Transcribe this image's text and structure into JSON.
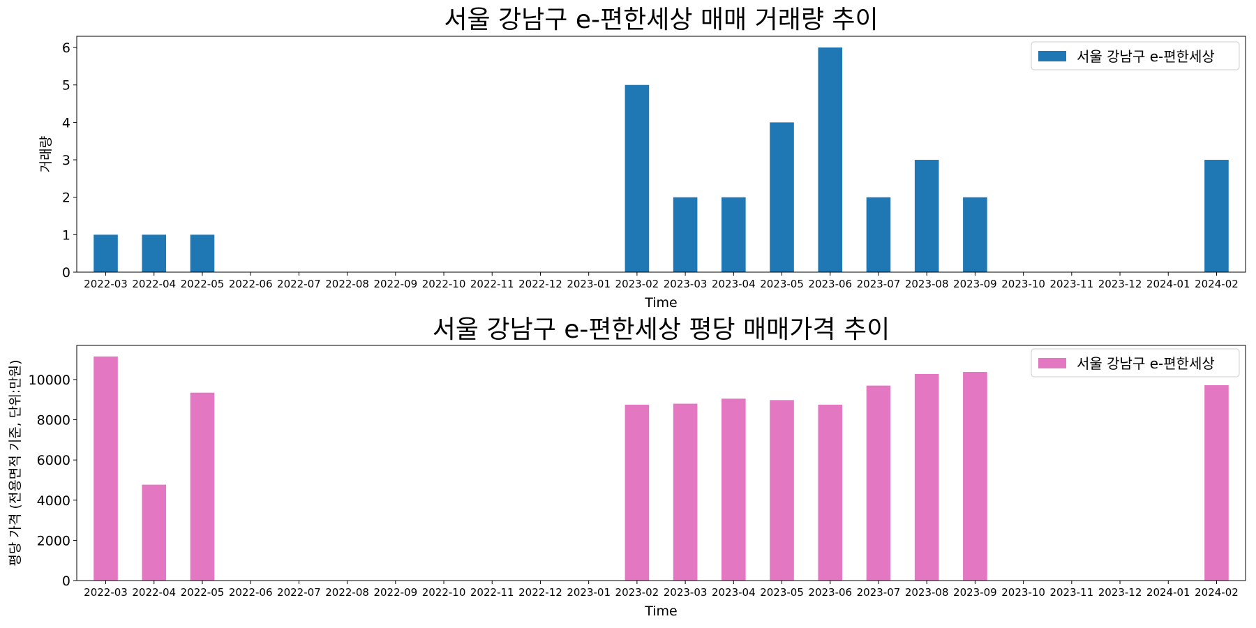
{
  "chart_data": [
    {
      "type": "bar",
      "title": "서울 강남구 e-편한세상 매매 거래량 추이",
      "xlabel": "Time",
      "ylabel": "거래량",
      "categories": [
        "2022-03",
        "2022-04",
        "2022-05",
        "2022-06",
        "2022-07",
        "2022-08",
        "2022-09",
        "2022-10",
        "2022-11",
        "2022-12",
        "2023-01",
        "2023-02",
        "2023-03",
        "2023-04",
        "2023-05",
        "2023-06",
        "2023-07",
        "2023-08",
        "2023-09",
        "2023-10",
        "2023-11",
        "2023-12",
        "2024-01",
        "2024-02"
      ],
      "series": [
        {
          "name": "서울 강남구 e-편한세상",
          "color": "#1f77b4",
          "values": [
            1,
            1,
            1,
            0,
            0,
            0,
            0,
            0,
            0,
            0,
            0,
            5,
            2,
            2,
            4,
            6,
            2,
            3,
            2,
            0,
            0,
            0,
            0,
            3
          ]
        }
      ],
      "ylim": [
        0,
        6.3
      ],
      "yticks": [
        0,
        1,
        2,
        3,
        4,
        5,
        6
      ],
      "grid": false,
      "legend_position": "top-right"
    },
    {
      "type": "bar",
      "title": "서울 강남구 e-편한세상 평당 매매가격 추이",
      "xlabel": "Time",
      "ylabel": "평당 가격 (전용면적 기준, 단위:만원)",
      "categories": [
        "2022-03",
        "2022-04",
        "2022-05",
        "2022-06",
        "2022-07",
        "2022-08",
        "2022-09",
        "2022-10",
        "2022-11",
        "2022-12",
        "2023-01",
        "2023-02",
        "2023-03",
        "2023-04",
        "2023-05",
        "2023-06",
        "2023-07",
        "2023-08",
        "2023-09",
        "2023-10",
        "2023-11",
        "2023-12",
        "2024-01",
        "2024-02"
      ],
      "series": [
        {
          "name": "서울 강남구 e-편한세상",
          "color": "#e377c2",
          "values": [
            11150,
            4770,
            9350,
            0,
            0,
            0,
            0,
            0,
            0,
            0,
            0,
            8750,
            8800,
            9050,
            8980,
            8750,
            9700,
            10280,
            10380,
            0,
            0,
            0,
            0,
            9720
          ]
        }
      ],
      "ylim": [
        0,
        11700
      ],
      "yticks": [
        0,
        2000,
        4000,
        6000,
        8000,
        10000
      ],
      "grid": false,
      "legend_position": "top-right"
    }
  ]
}
